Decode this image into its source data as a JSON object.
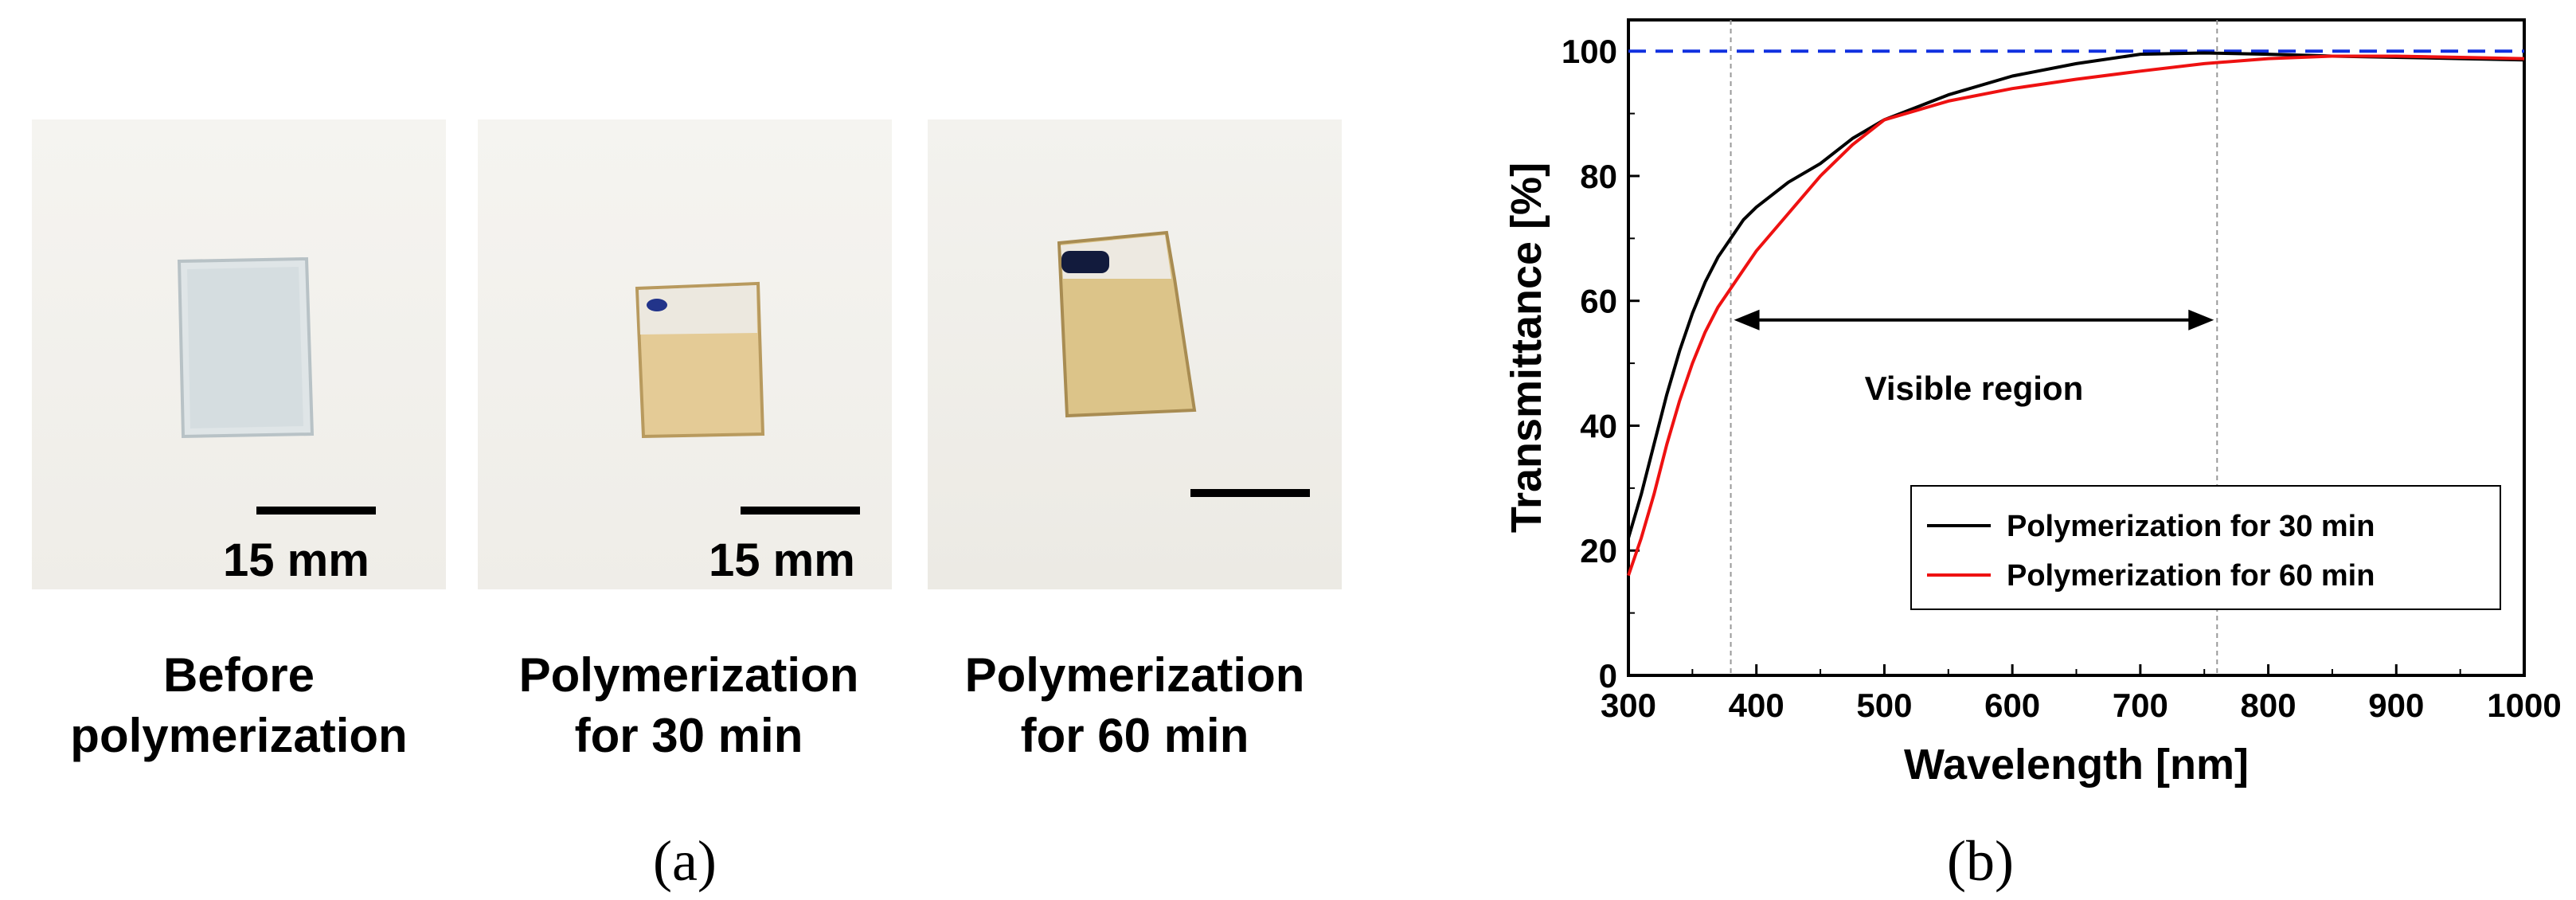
{
  "panel_a": {
    "label": "(a)",
    "scale_label": "15 mm",
    "samples": [
      {
        "line1": "Before",
        "line2": "polymerization",
        "scale_label": "15 mm"
      },
      {
        "line1": "Polymerization",
        "line2": "for 30 min",
        "scale_label": "15 mm"
      },
      {
        "line1": "Polymerization",
        "line2": "for 60 min",
        "scale_label": ""
      }
    ]
  },
  "panel_b": {
    "label": "(b)"
  },
  "colors": {
    "series_30": "#000000",
    "series_60": "#ee1111",
    "reference": "#1030e0",
    "film_clear": "#d8dfe2",
    "film_amber": "#e2c994",
    "marker_blue": "#1a2a80"
  },
  "chart_data": {
    "type": "line",
    "title": "",
    "xlabel": "Wavelength [nm]",
    "ylabel": "Transmittance [%]",
    "xlim": [
      300,
      1000
    ],
    "ylim": [
      0,
      105
    ],
    "xticks": [
      300,
      400,
      500,
      600,
      700,
      800,
      900,
      1000
    ],
    "yticks": [
      0,
      20,
      40,
      60,
      80,
      100
    ],
    "grid": false,
    "legend_position": "lower-right",
    "reference_line": {
      "y": 100,
      "style": "dashed"
    },
    "vertical_markers": [
      380,
      760
    ],
    "annotation": {
      "text": "Visible region",
      "from": 380,
      "to": 760,
      "y": 48
    },
    "series": [
      {
        "name": "Polymerization for 30 min",
        "x": [
          300,
          310,
          320,
          330,
          340,
          350,
          360,
          370,
          380,
          390,
          400,
          425,
          450,
          475,
          500,
          550,
          600,
          650,
          700,
          750,
          800,
          850,
          900,
          950,
          1000
        ],
        "y": [
          22,
          29,
          37,
          45,
          52,
          58,
          63,
          67,
          70,
          73,
          75,
          79,
          82,
          86,
          89,
          93,
          96,
          98,
          99.5,
          99.7,
          99.5,
          99.2,
          99,
          98.8,
          98.6
        ]
      },
      {
        "name": "Polymerization for 60 min",
        "x": [
          300,
          310,
          320,
          330,
          340,
          350,
          360,
          370,
          380,
          390,
          400,
          425,
          450,
          475,
          500,
          550,
          600,
          650,
          700,
          750,
          800,
          850,
          900,
          950,
          1000
        ],
        "y": [
          16,
          22,
          29,
          37,
          44,
          50,
          55,
          59,
          62,
          65,
          68,
          74,
          80,
          85,
          89,
          92,
          94,
          95.5,
          96.8,
          98,
          98.8,
          99.2,
          99.2,
          99,
          98.8
        ]
      }
    ]
  }
}
